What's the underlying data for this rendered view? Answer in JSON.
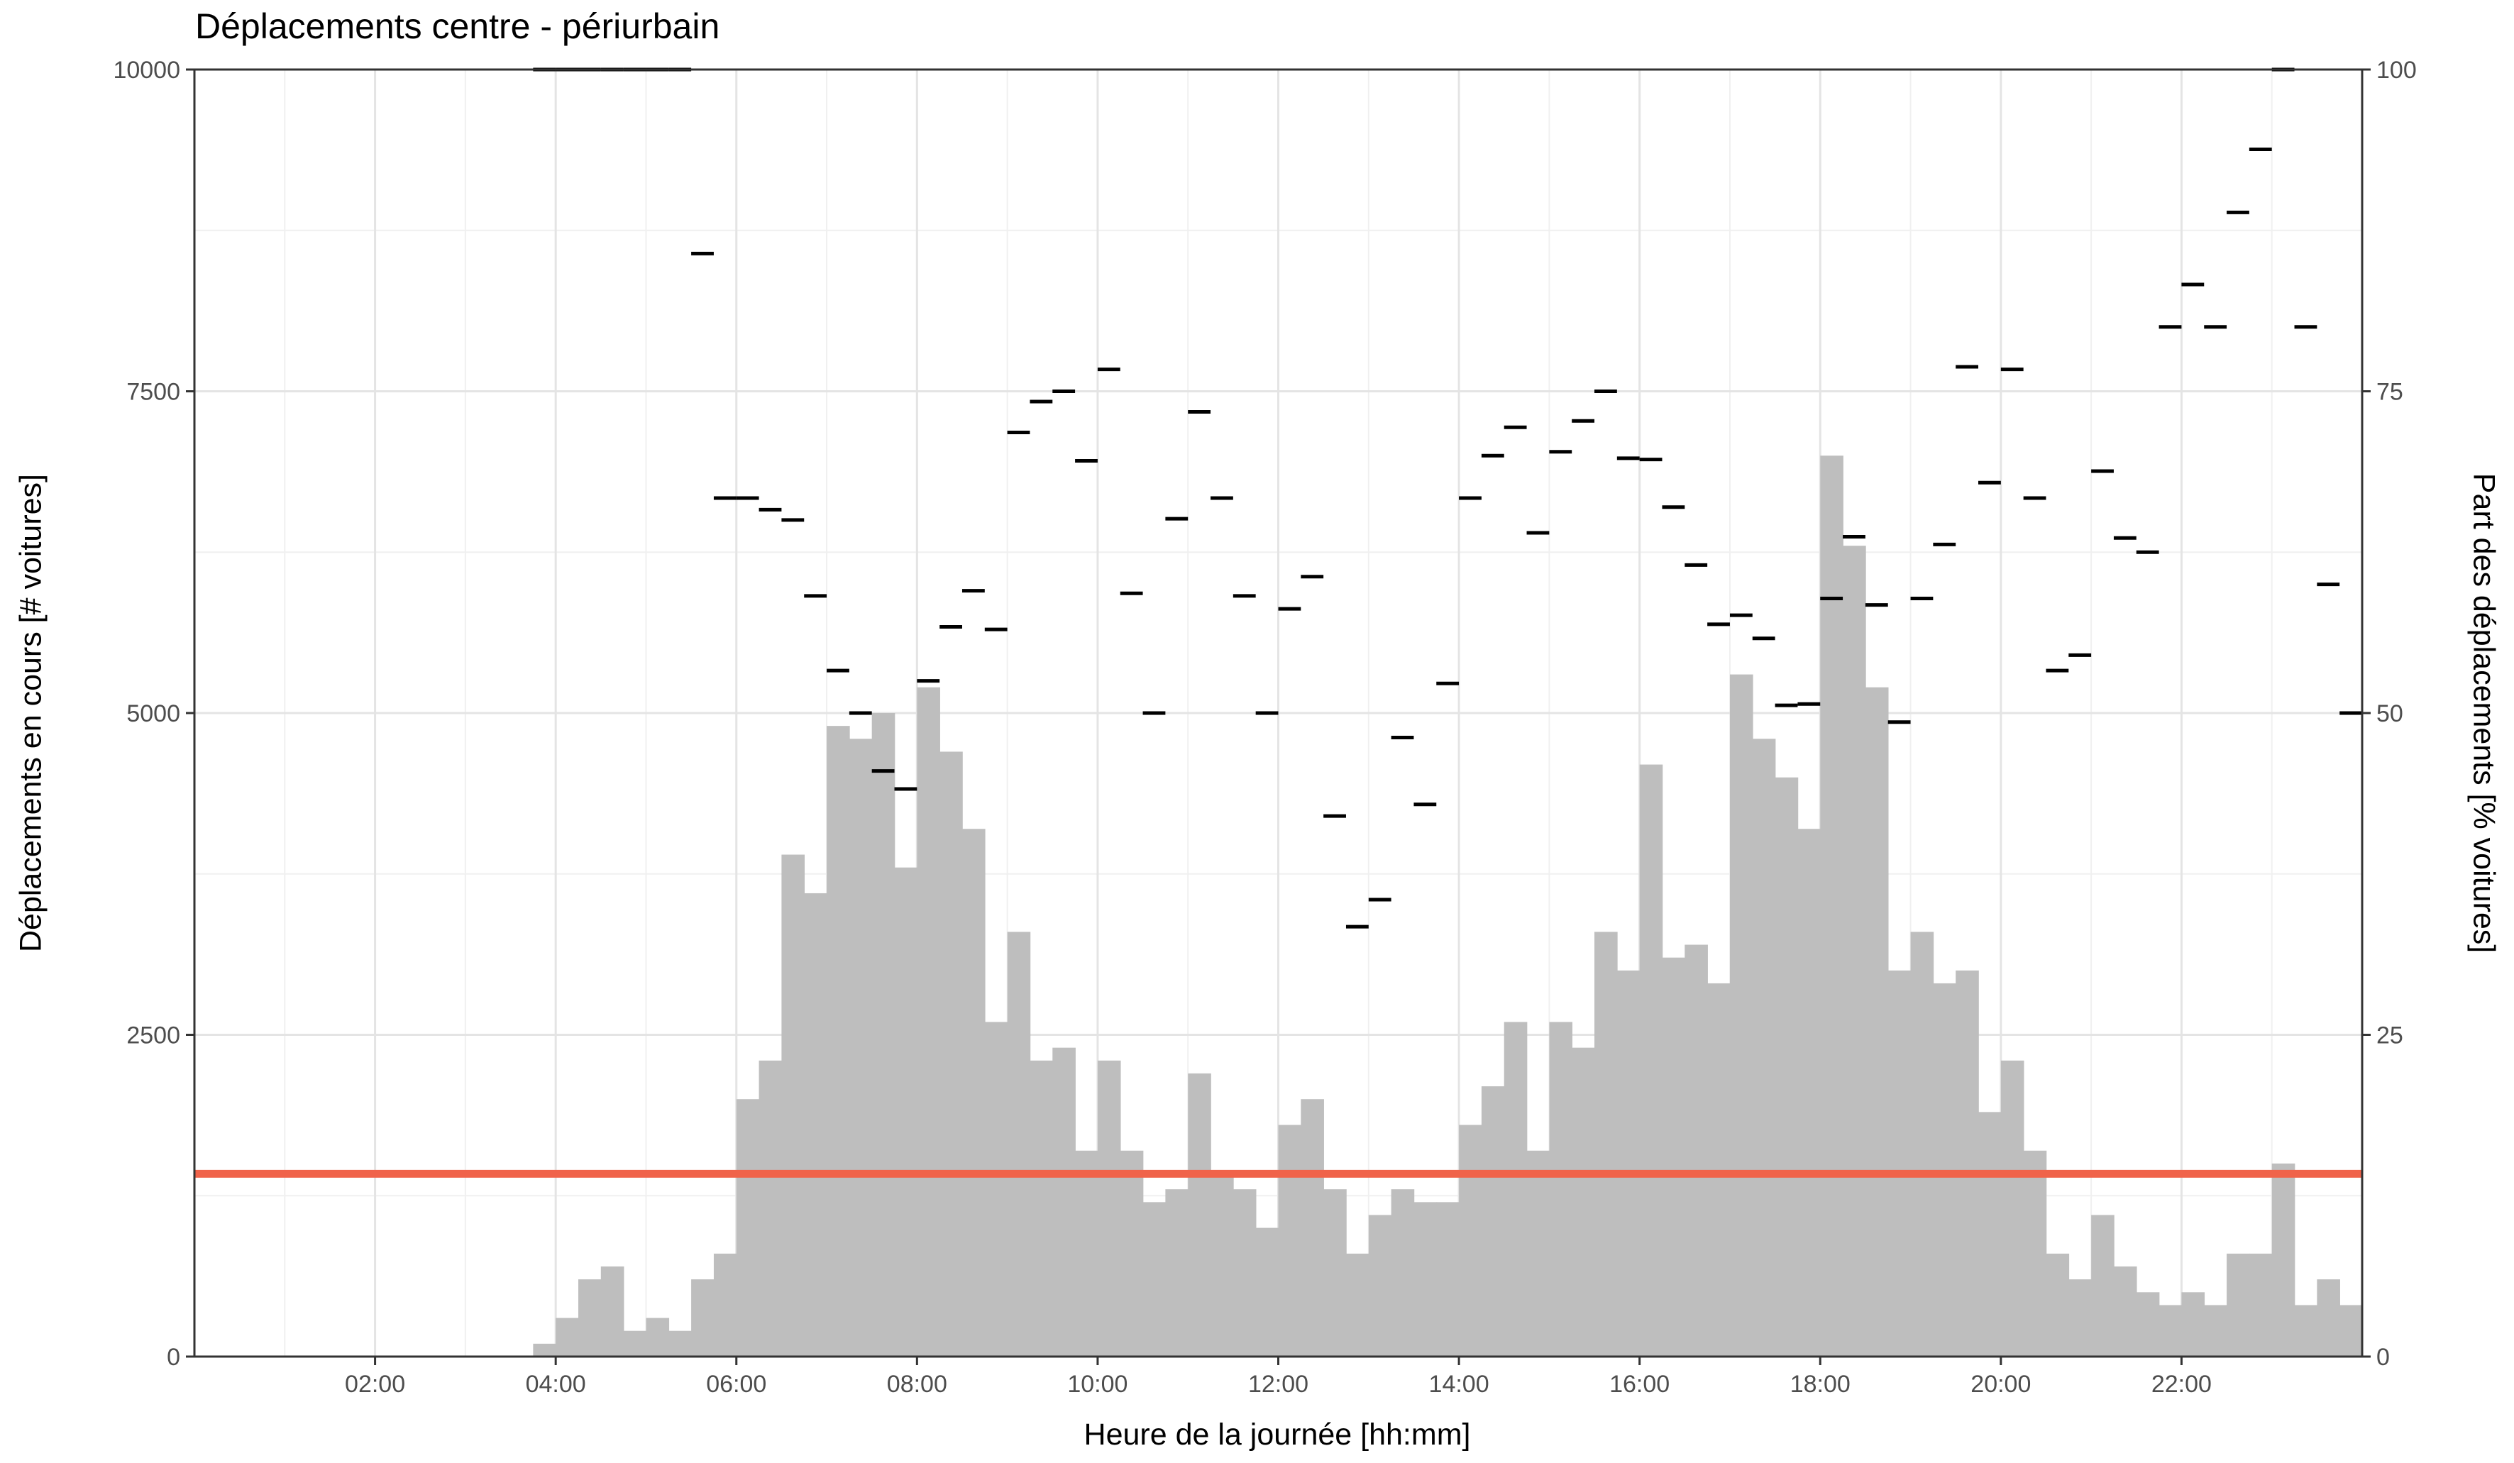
{
  "chart_data": {
    "type": "bar",
    "title": "Déplacements centre - périurbain",
    "xlabel": "Heure de la journée [hh:mm]",
    "ylabel": "Déplacements en cours [# voitures]",
    "y2label": "Part des déplacements [% voitures]",
    "x_ticks": [
      "02:00",
      "04:00",
      "06:00",
      "08:00",
      "10:00",
      "12:00",
      "14:00",
      "16:00",
      "18:00",
      "20:00",
      "22:00"
    ],
    "y_ticks": [
      "0",
      "2500",
      "5000",
      "7500",
      "10000"
    ],
    "y2_ticks": [
      "0",
      "25",
      "50",
      "75",
      "100"
    ],
    "xlim_hours": [
      0,
      24
    ],
    "ylim": [
      0,
      10000
    ],
    "y2lim": [
      0,
      100
    ],
    "grid": true,
    "colors": {
      "bars": "#bebebe",
      "reference_line": "#f0634a",
      "share_marks": "#000000"
    },
    "series": [
      {
        "type": "bar",
        "values": [
          {
            "x": "03:45",
            "y": 100
          },
          {
            "x": "04:00",
            "y": 300
          },
          {
            "x": "04:15",
            "y": 600
          },
          {
            "x": "04:30",
            "y": 700
          },
          {
            "x": "04:45",
            "y": 200
          },
          {
            "x": "05:00",
            "y": 300
          },
          {
            "x": "05:15",
            "y": 200
          },
          {
            "x": "05:30",
            "y": 600
          },
          {
            "x": "05:45",
            "y": 800
          },
          {
            "x": "06:00",
            "y": 2000
          },
          {
            "x": "06:15",
            "y": 2300
          },
          {
            "x": "06:30",
            "y": 3900
          },
          {
            "x": "06:45",
            "y": 3600
          },
          {
            "x": "07:00",
            "y": 4900
          },
          {
            "x": "07:15",
            "y": 4800
          },
          {
            "x": "07:30",
            "y": 5000
          },
          {
            "x": "07:45",
            "y": 3800
          },
          {
            "x": "08:00",
            "y": 5200
          },
          {
            "x": "08:15",
            "y": 4700
          },
          {
            "x": "08:30",
            "y": 4100
          },
          {
            "x": "08:45",
            "y": 2600
          },
          {
            "x": "09:00",
            "y": 3300
          },
          {
            "x": "09:15",
            "y": 2300
          },
          {
            "x": "09:30",
            "y": 2400
          },
          {
            "x": "09:45",
            "y": 1600
          },
          {
            "x": "10:00",
            "y": 2300
          },
          {
            "x": "10:15",
            "y": 1600
          },
          {
            "x": "10:30",
            "y": 1200
          },
          {
            "x": "10:45",
            "y": 1300
          },
          {
            "x": "11:00",
            "y": 2200
          },
          {
            "x": "11:15",
            "y": 1400
          },
          {
            "x": "11:30",
            "y": 1300
          },
          {
            "x": "11:45",
            "y": 1000
          },
          {
            "x": "12:00",
            "y": 1800
          },
          {
            "x": "12:15",
            "y": 2000
          },
          {
            "x": "12:30",
            "y": 1300
          },
          {
            "x": "12:45",
            "y": 800
          },
          {
            "x": "13:00",
            "y": 1100
          },
          {
            "x": "13:15",
            "y": 1300
          },
          {
            "x": "13:30",
            "y": 1200
          },
          {
            "x": "13:45",
            "y": 1200
          },
          {
            "x": "14:00",
            "y": 1800
          },
          {
            "x": "14:15",
            "y": 2100
          },
          {
            "x": "14:30",
            "y": 2600
          },
          {
            "x": "14:45",
            "y": 1600
          },
          {
            "x": "15:00",
            "y": 2600
          },
          {
            "x": "15:15",
            "y": 2400
          },
          {
            "x": "15:30",
            "y": 3300
          },
          {
            "x": "15:45",
            "y": 3000
          },
          {
            "x": "16:00",
            "y": 4600
          },
          {
            "x": "16:15",
            "y": 3100
          },
          {
            "x": "16:30",
            "y": 3200
          },
          {
            "x": "16:45",
            "y": 2900
          },
          {
            "x": "17:00",
            "y": 5300
          },
          {
            "x": "17:15",
            "y": 4800
          },
          {
            "x": "17:30",
            "y": 4500
          },
          {
            "x": "17:45",
            "y": 4100
          },
          {
            "x": "18:00",
            "y": 7000
          },
          {
            "x": "18:15",
            "y": 6300
          },
          {
            "x": "18:30",
            "y": 5200
          },
          {
            "x": "18:45",
            "y": 3000
          },
          {
            "x": "19:00",
            "y": 3300
          },
          {
            "x": "19:15",
            "y": 2900
          },
          {
            "x": "19:30",
            "y": 3000
          },
          {
            "x": "19:45",
            "y": 1900
          },
          {
            "x": "20:00",
            "y": 2300
          },
          {
            "x": "20:15",
            "y": 1600
          },
          {
            "x": "20:30",
            "y": 800
          },
          {
            "x": "20:45",
            "y": 600
          },
          {
            "x": "21:00",
            "y": 1100
          },
          {
            "x": "21:15",
            "y": 700
          },
          {
            "x": "21:30",
            "y": 500
          },
          {
            "x": "21:45",
            "y": 400
          },
          {
            "x": "22:00",
            "y": 500
          },
          {
            "x": "22:15",
            "y": 400
          },
          {
            "x": "22:30",
            "y": 800
          },
          {
            "x": "22:45",
            "y": 800
          },
          {
            "x": "23:00",
            "y": 1500
          },
          {
            "x": "23:15",
            "y": 400
          },
          {
            "x": "23:30",
            "y": 600
          },
          {
            "x": "23:45",
            "y": 400
          }
        ]
      },
      {
        "type": "step",
        "axis": "right",
        "values": [
          {
            "x": "03:45",
            "y": 100
          },
          {
            "x": "04:00",
            "y": 100
          },
          {
            "x": "04:15",
            "y": 100
          },
          {
            "x": "04:30",
            "y": 100
          },
          {
            "x": "04:45",
            "y": 100
          },
          {
            "x": "05:00",
            "y": 100
          },
          {
            "x": "05:15",
            "y": 100
          },
          {
            "x": "05:30",
            "y": 85.7
          },
          {
            "x": "05:45",
            "y": 66.7
          },
          {
            "x": "06:00",
            "y": 66.7
          },
          {
            "x": "06:15",
            "y": 65.8
          },
          {
            "x": "06:30",
            "y": 65
          },
          {
            "x": "06:45",
            "y": 59.1
          },
          {
            "x": "07:00",
            "y": 53.3
          },
          {
            "x": "07:15",
            "y": 50
          },
          {
            "x": "07:30",
            "y": 45.5
          },
          {
            "x": "07:45",
            "y": 44.1
          },
          {
            "x": "08:00",
            "y": 52.5
          },
          {
            "x": "08:15",
            "y": 56.7
          },
          {
            "x": "08:30",
            "y": 59.5
          },
          {
            "x": "08:45",
            "y": 56.5
          },
          {
            "x": "09:00",
            "y": 71.8
          },
          {
            "x": "09:15",
            "y": 74.2
          },
          {
            "x": "09:30",
            "y": 75
          },
          {
            "x": "09:45",
            "y": 69.6
          },
          {
            "x": "10:00",
            "y": 76.7
          },
          {
            "x": "10:15",
            "y": 59.3
          },
          {
            "x": "10:30",
            "y": 50
          },
          {
            "x": "10:45",
            "y": 65.1
          },
          {
            "x": "11:00",
            "y": 73.4
          },
          {
            "x": "11:15",
            "y": 66.7
          },
          {
            "x": "11:30",
            "y": 59.1
          },
          {
            "x": "11:45",
            "y": 50
          },
          {
            "x": "12:00",
            "y": 58.1
          },
          {
            "x": "12:15",
            "y": 60.6
          },
          {
            "x": "12:30",
            "y": 42
          },
          {
            "x": "12:45",
            "y": 33.4
          },
          {
            "x": "13:00",
            "y": 35.5
          },
          {
            "x": "13:15",
            "y": 48.1
          },
          {
            "x": "13:30",
            "y": 42.9
          },
          {
            "x": "13:45",
            "y": 52.3
          },
          {
            "x": "14:00",
            "y": 66.7
          },
          {
            "x": "14:15",
            "y": 70
          },
          {
            "x": "14:30",
            "y": 72.2
          },
          {
            "x": "14:45",
            "y": 64
          },
          {
            "x": "15:00",
            "y": 70.3
          },
          {
            "x": "15:15",
            "y": 72.7
          },
          {
            "x": "15:30",
            "y": 75
          },
          {
            "x": "15:45",
            "y": 69.8
          },
          {
            "x": "16:00",
            "y": 69.7
          },
          {
            "x": "16:15",
            "y": 66
          },
          {
            "x": "16:30",
            "y": 61.5
          },
          {
            "x": "16:45",
            "y": 56.9
          },
          {
            "x": "17:00",
            "y": 57.6
          },
          {
            "x": "17:15",
            "y": 55.8
          },
          {
            "x": "17:30",
            "y": 50.6
          },
          {
            "x": "17:45",
            "y": 50.7
          },
          {
            "x": "18:00",
            "y": 58.9
          },
          {
            "x": "18:15",
            "y": 63.7
          },
          {
            "x": "18:30",
            "y": 58.4
          },
          {
            "x": "18:45",
            "y": 49.3
          },
          {
            "x": "19:00",
            "y": 58.9
          },
          {
            "x": "19:15",
            "y": 63.1
          },
          {
            "x": "19:30",
            "y": 76.9
          },
          {
            "x": "19:45",
            "y": 67.9
          },
          {
            "x": "20:00",
            "y": 76.7
          },
          {
            "x": "20:15",
            "y": 66.7
          },
          {
            "x": "20:30",
            "y": 53.3
          },
          {
            "x": "20:45",
            "y": 54.5
          },
          {
            "x": "21:00",
            "y": 68.8
          },
          {
            "x": "21:15",
            "y": 63.6
          },
          {
            "x": "21:30",
            "y": 62.5
          },
          {
            "x": "21:45",
            "y": 80
          },
          {
            "x": "22:00",
            "y": 83.3
          },
          {
            "x": "22:15",
            "y": 80
          },
          {
            "x": "22:30",
            "y": 88.9
          },
          {
            "x": "22:45",
            "y": 93.8
          },
          {
            "x": "23:00",
            "y": 100
          },
          {
            "x": "23:15",
            "y": 80
          },
          {
            "x": "23:30",
            "y": 60
          },
          {
            "x": "23:45",
            "y": 50
          }
        ]
      },
      {
        "type": "hline",
        "axis": "left",
        "y": 1420
      }
    ]
  }
}
